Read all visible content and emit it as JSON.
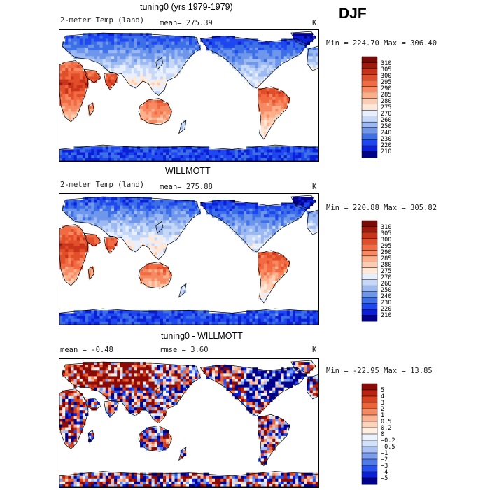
{
  "season": "DJF",
  "colors": {
    "temp_palette": [
      "#00008b",
      "#0a1fd6",
      "#1f47f0",
      "#3d6fe6",
      "#6e96ea",
      "#9cb9f1",
      "#c6d8f7",
      "#e8efff",
      "#ffe8d8",
      "#fdcdb3",
      "#fbb08b",
      "#f78a62",
      "#f26a42",
      "#e24e2a",
      "#c8341a",
      "#9e1a0c",
      "#7a0a05"
    ],
    "diff_palette": [
      "#00008b",
      "#0a1fd6",
      "#2650f0",
      "#4f7ae8",
      "#7d9dee",
      "#a9c1f4",
      "#d2e1fa",
      "#eef4ff",
      "#ffeee2",
      "#fed3bb",
      "#fbb393",
      "#f58b63",
      "#ec6437",
      "#d8421f",
      "#b82410",
      "#8b0a05"
    ],
    "land_cold": "#5b86e5",
    "land_warm": "#e8562e",
    "ocean": "#ffffff"
  },
  "panels": [
    {
      "title": "tuning0 (yrs 1979-1979)",
      "left_label": "2-meter Temp (land)",
      "mid_label": "mean= 275.39",
      "right_label": "K",
      "minmax": "Min = 224.70 Max = 306.40",
      "colorbar_labels": [
        "310",
        "305",
        "300",
        "295",
        "290",
        "285",
        "280",
        "275",
        "270",
        "260",
        "250",
        "240",
        "230",
        "220",
        "210"
      ]
    },
    {
      "title": "WILLMOTT",
      "left_label": "2-meter Temp (land)",
      "mid_label": "mean= 275.88",
      "right_label": "K",
      "minmax": "Min = 220.88 Max = 305.82",
      "colorbar_labels": [
        "310",
        "305",
        "300",
        "295",
        "290",
        "285",
        "280",
        "275",
        "270",
        "260",
        "250",
        "240",
        "230",
        "220",
        "210"
      ]
    },
    {
      "title": "tuning0 - WILLMOTT",
      "left_label": "mean =  -0.48",
      "mid_label": "rmse =   3.60",
      "right_label": "K",
      "minmax": "Min = -22.95 Max =  13.85",
      "colorbar_labels": [
        "5",
        "4",
        "3",
        "2",
        "1",
        "0.5",
        "0.2",
        "0",
        "−0.2",
        "−0.5",
        "−1",
        "−2",
        "−3",
        "−4",
        "−5"
      ]
    }
  ]
}
